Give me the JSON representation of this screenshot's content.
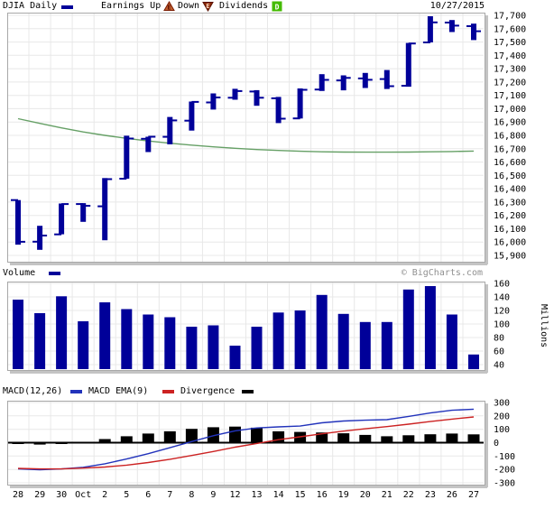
{
  "header": {
    "symbol": "DJIA Daily",
    "earnings_label": "Earnings Up",
    "down_label": "Down",
    "dividends_label": "Dividends",
    "earnings_up_icon": "E",
    "earnings_down_icon": "E",
    "dividends_icon": "D",
    "date": "10/27/2015"
  },
  "volume_section": {
    "label": "Volume",
    "watermark": "© BigCharts.com",
    "axis_unit": "Millions"
  },
  "macd_section": {
    "macd_label": "MACD(12,26)",
    "ema_label": "MACD EMA(9)",
    "divergence_label": "Divergence"
  },
  "colors": {
    "bar": "#000099",
    "ma": "#66a066",
    "macd": "#2233bb",
    "ema": "#cc2222",
    "divergence": "#000000",
    "grid": "#e8e8e8",
    "panel_border": "#a8a8a8",
    "shadow": "#c4c4c4",
    "watermark_gray": "#909090",
    "dividend_green": "#44bb00",
    "up_icon_fill": "#c06030",
    "down_icon_fill": "#8b2a08"
  },
  "chart_data": [
    {
      "type": "ohlc-bar",
      "title": "DJIA Daily price",
      "x": [
        "28",
        "29",
        "30",
        "Oct",
        "2",
        "5",
        "6",
        "7",
        "8",
        "9",
        "12",
        "13",
        "14",
        "15",
        "16",
        "19",
        "20",
        "21",
        "22",
        "23",
        "26",
        "27"
      ],
      "ylim": [
        15900,
        17700
      ],
      "yticks": [
        17700,
        17600,
        17500,
        17400,
        17300,
        17200,
        17100,
        17000,
        16900,
        16800,
        16700,
        16600,
        16500,
        16400,
        16300,
        16200,
        16100,
        16000,
        15900
      ],
      "grid": true,
      "series": [
        {
          "name": "DJIA OHLC",
          "ohlc": [
            [
              16315,
              16315,
              15981,
              16002
            ],
            [
              16003,
              16122,
              15942,
              16049
            ],
            [
              16058,
              16289,
              16058,
              16285
            ],
            [
              16285,
              16292,
              16152,
              16272
            ],
            [
              16268,
              16480,
              16014,
              16472
            ],
            [
              16475,
              16797,
              16475,
              16776
            ],
            [
              16774,
              16790,
              16675,
              16790
            ],
            [
              16789,
              16938,
              16733,
              16912
            ],
            [
              16910,
              17054,
              16836,
              17051
            ],
            [
              17047,
              17115,
              16994,
              17084
            ],
            [
              17082,
              17149,
              17067,
              17132
            ],
            [
              17129,
              17139,
              17022,
              17082
            ],
            [
              17078,
              17088,
              16892,
              16925
            ],
            [
              16927,
              17152,
              16927,
              17142
            ],
            [
              17144,
              17259,
              17133,
              17216
            ],
            [
              17212,
              17250,
              17138,
              17231
            ],
            [
              17227,
              17268,
              17155,
              17217
            ],
            [
              17222,
              17290,
              17148,
              17169
            ],
            [
              17172,
              17493,
              17165,
              17489
            ],
            [
              17497,
              17693,
              17497,
              17647
            ],
            [
              17646,
              17665,
              17575,
              17623
            ],
            [
              17619,
              17638,
              17515,
              17581
            ]
          ]
        },
        {
          "name": "moving-average",
          "values": [
            16925,
            16890,
            16856,
            16826,
            16800,
            16778,
            16758,
            16741,
            16727,
            16714,
            16703,
            16694,
            16687,
            16681,
            16677,
            16675,
            16674,
            16674,
            16675,
            16677,
            16679,
            16682
          ]
        }
      ]
    },
    {
      "type": "bar",
      "title": "Volume",
      "ylabel": "Millions",
      "x": [
        "28",
        "29",
        "30",
        "Oct",
        "2",
        "5",
        "6",
        "7",
        "8",
        "9",
        "12",
        "13",
        "14",
        "15",
        "16",
        "19",
        "20",
        "21",
        "22",
        "23",
        "26",
        "27"
      ],
      "ylim": [
        40,
        160
      ],
      "yticks": [
        160,
        140,
        120,
        100,
        80,
        60,
        40
      ],
      "grid": true,
      "values": [
        136,
        116,
        141,
        104,
        132,
        122,
        114,
        110,
        96,
        98,
        68,
        96,
        117,
        120,
        143,
        115,
        103,
        103,
        151,
        156,
        114,
        55
      ]
    },
    {
      "type": "line+bar",
      "title": "MACD",
      "x": [
        "28",
        "29",
        "30",
        "Oct",
        "2",
        "5",
        "6",
        "7",
        "8",
        "9",
        "12",
        "13",
        "14",
        "15",
        "16",
        "19",
        "20",
        "21",
        "22",
        "23",
        "26",
        "27"
      ],
      "ylim": [
        -300,
        300
      ],
      "yticks": [
        300,
        200,
        100,
        0,
        -100,
        -200,
        -300
      ],
      "grid": true,
      "series": [
        {
          "name": "MACD(12,26)",
          "type": "line",
          "values": [
            -196,
            -202,
            -196,
            -184,
            -158,
            -122,
            -82,
            -38,
            8,
            52,
            88,
            110,
            118,
            124,
            148,
            162,
            168,
            172,
            196,
            222,
            242,
            250
          ]
        },
        {
          "name": "MACD EMA(9)",
          "type": "line",
          "values": [
            -192,
            -196,
            -196,
            -190,
            -182,
            -168,
            -148,
            -124,
            -96,
            -66,
            -34,
            -6,
            22,
            44,
            66,
            86,
            104,
            120,
            138,
            158,
            176,
            192
          ]
        },
        {
          "name": "Divergence",
          "type": "bar",
          "values": [
            -8,
            -14,
            -2,
            4,
            27,
            48,
            68,
            85,
            103,
            115,
            120,
            112,
            85,
            80,
            76,
            70,
            58,
            48,
            55,
            63,
            68,
            62
          ]
        }
      ]
    }
  ]
}
